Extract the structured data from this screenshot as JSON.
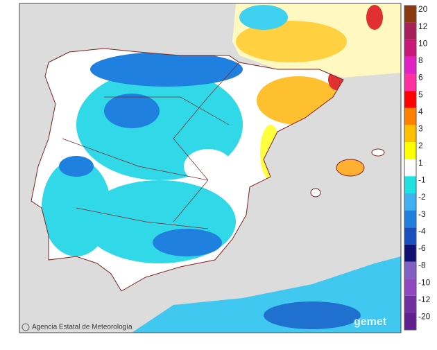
{
  "map": {
    "credit": "Agencia Estatal de Meteorología",
    "watermark": "gemet",
    "legend": [
      {
        "label": "20",
        "color": "#8b3a10"
      },
      {
        "label": "12",
        "color": "#a8205a"
      },
      {
        "label": "10",
        "color": "#c81878"
      },
      {
        "label": "8",
        "color": "#e020c0"
      },
      {
        "label": "6",
        "color": "#ff30a0"
      },
      {
        "label": "5",
        "color": "#ff0000"
      },
      {
        "label": "4",
        "color": "#ff8000"
      },
      {
        "label": "3",
        "color": "#ffc000"
      },
      {
        "label": "2",
        "color": "#ffff00"
      },
      {
        "label": "1",
        "color": "#ffffff"
      },
      {
        "label": "-1",
        "color": "#20e0e0"
      },
      {
        "label": "-2",
        "color": "#40b0f0"
      },
      {
        "label": "-3",
        "color": "#2080e0"
      },
      {
        "label": "-4",
        "color": "#1850c0"
      },
      {
        "label": "-6",
        "color": "#101070"
      },
      {
        "label": "-8",
        "color": "#8060c0"
      },
      {
        "label": "-10",
        "color": "#9048c0"
      },
      {
        "label": "-12",
        "color": "#7030a0"
      },
      {
        "label": "-20",
        "color": "#602090"
      }
    ]
  }
}
